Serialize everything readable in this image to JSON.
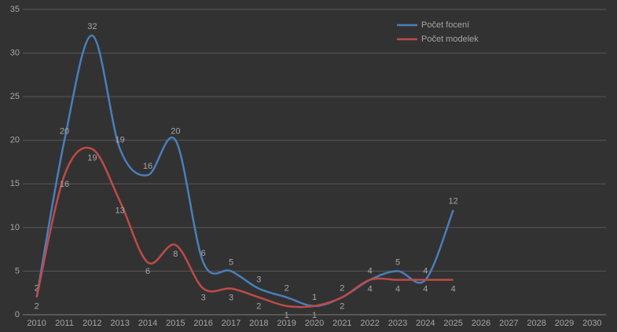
{
  "chart_data": {
    "type": "line",
    "categories": [
      "2010",
      "2011",
      "2012",
      "2013",
      "2014",
      "2015",
      "2016",
      "2017",
      "2018",
      "2019",
      "2020",
      "2021",
      "2022",
      "2023",
      "2024",
      "2025",
      "2026",
      "2027",
      "2028",
      "2029",
      "2030"
    ],
    "series": [
      {
        "name": "Počet focení",
        "color": "#4a7ebb",
        "values": [
          2,
          20,
          32,
          19,
          16,
          20,
          6,
          5,
          3,
          2,
          1,
          2,
          4,
          5,
          4,
          12,
          null,
          null,
          null,
          null,
          null
        ]
      },
      {
        "name": "Počet modelek",
        "color": "#be4b48",
        "values": [
          2,
          16,
          19,
          13,
          6,
          8,
          3,
          3,
          2,
          1,
          1,
          2,
          4,
          4,
          4,
          4,
          null,
          null,
          null,
          null,
          null
        ]
      }
    ],
    "ylim": [
      0,
      35
    ],
    "yticks": [
      0,
      5,
      10,
      15,
      20,
      25,
      30,
      35
    ],
    "grid": true,
    "smooth": true,
    "legend": "top-right"
  }
}
